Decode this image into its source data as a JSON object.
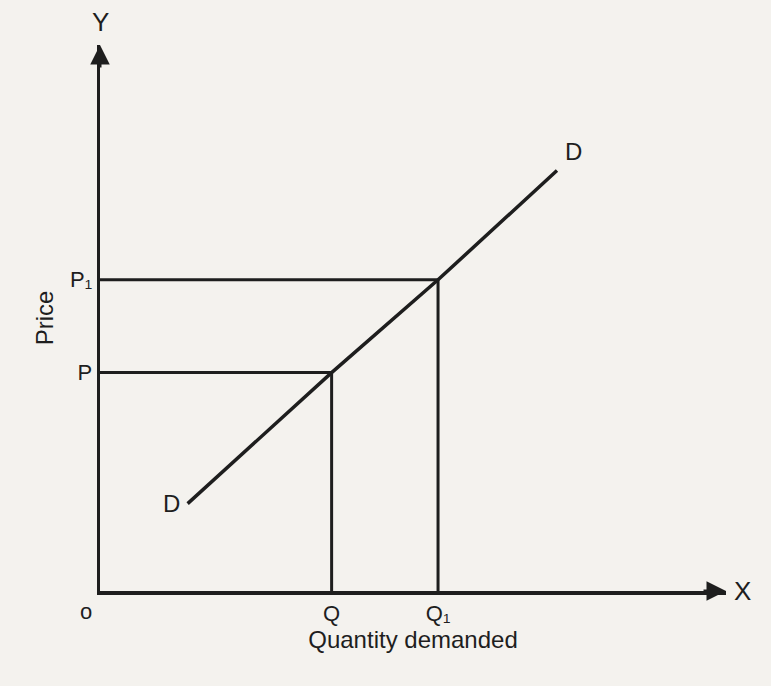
{
  "chart_data": {
    "type": "line",
    "x_label": "Quantity demanded",
    "y_label": "Price",
    "x_end_label": "X",
    "y_end_label": "Y",
    "origin_label": "o",
    "series": [
      {
        "label": "D",
        "color": "#1e1e1e",
        "x": [
          1.4,
          3.7,
          5.4,
          7.3
        ],
        "values": [
          1.6,
          4.0,
          5.7,
          7.7
        ]
      }
    ],
    "xlim": [
      0,
      10
    ],
    "ylim": [
      0,
      10
    ],
    "xticks": [
      {
        "value": 3.7,
        "label": "Q"
      },
      {
        "value": 5.4,
        "label": "Q₁"
      }
    ],
    "yticks": [
      {
        "value": 4.0,
        "label": "P"
      },
      {
        "value": 5.7,
        "label": "P₁"
      }
    ],
    "grid": false
  }
}
